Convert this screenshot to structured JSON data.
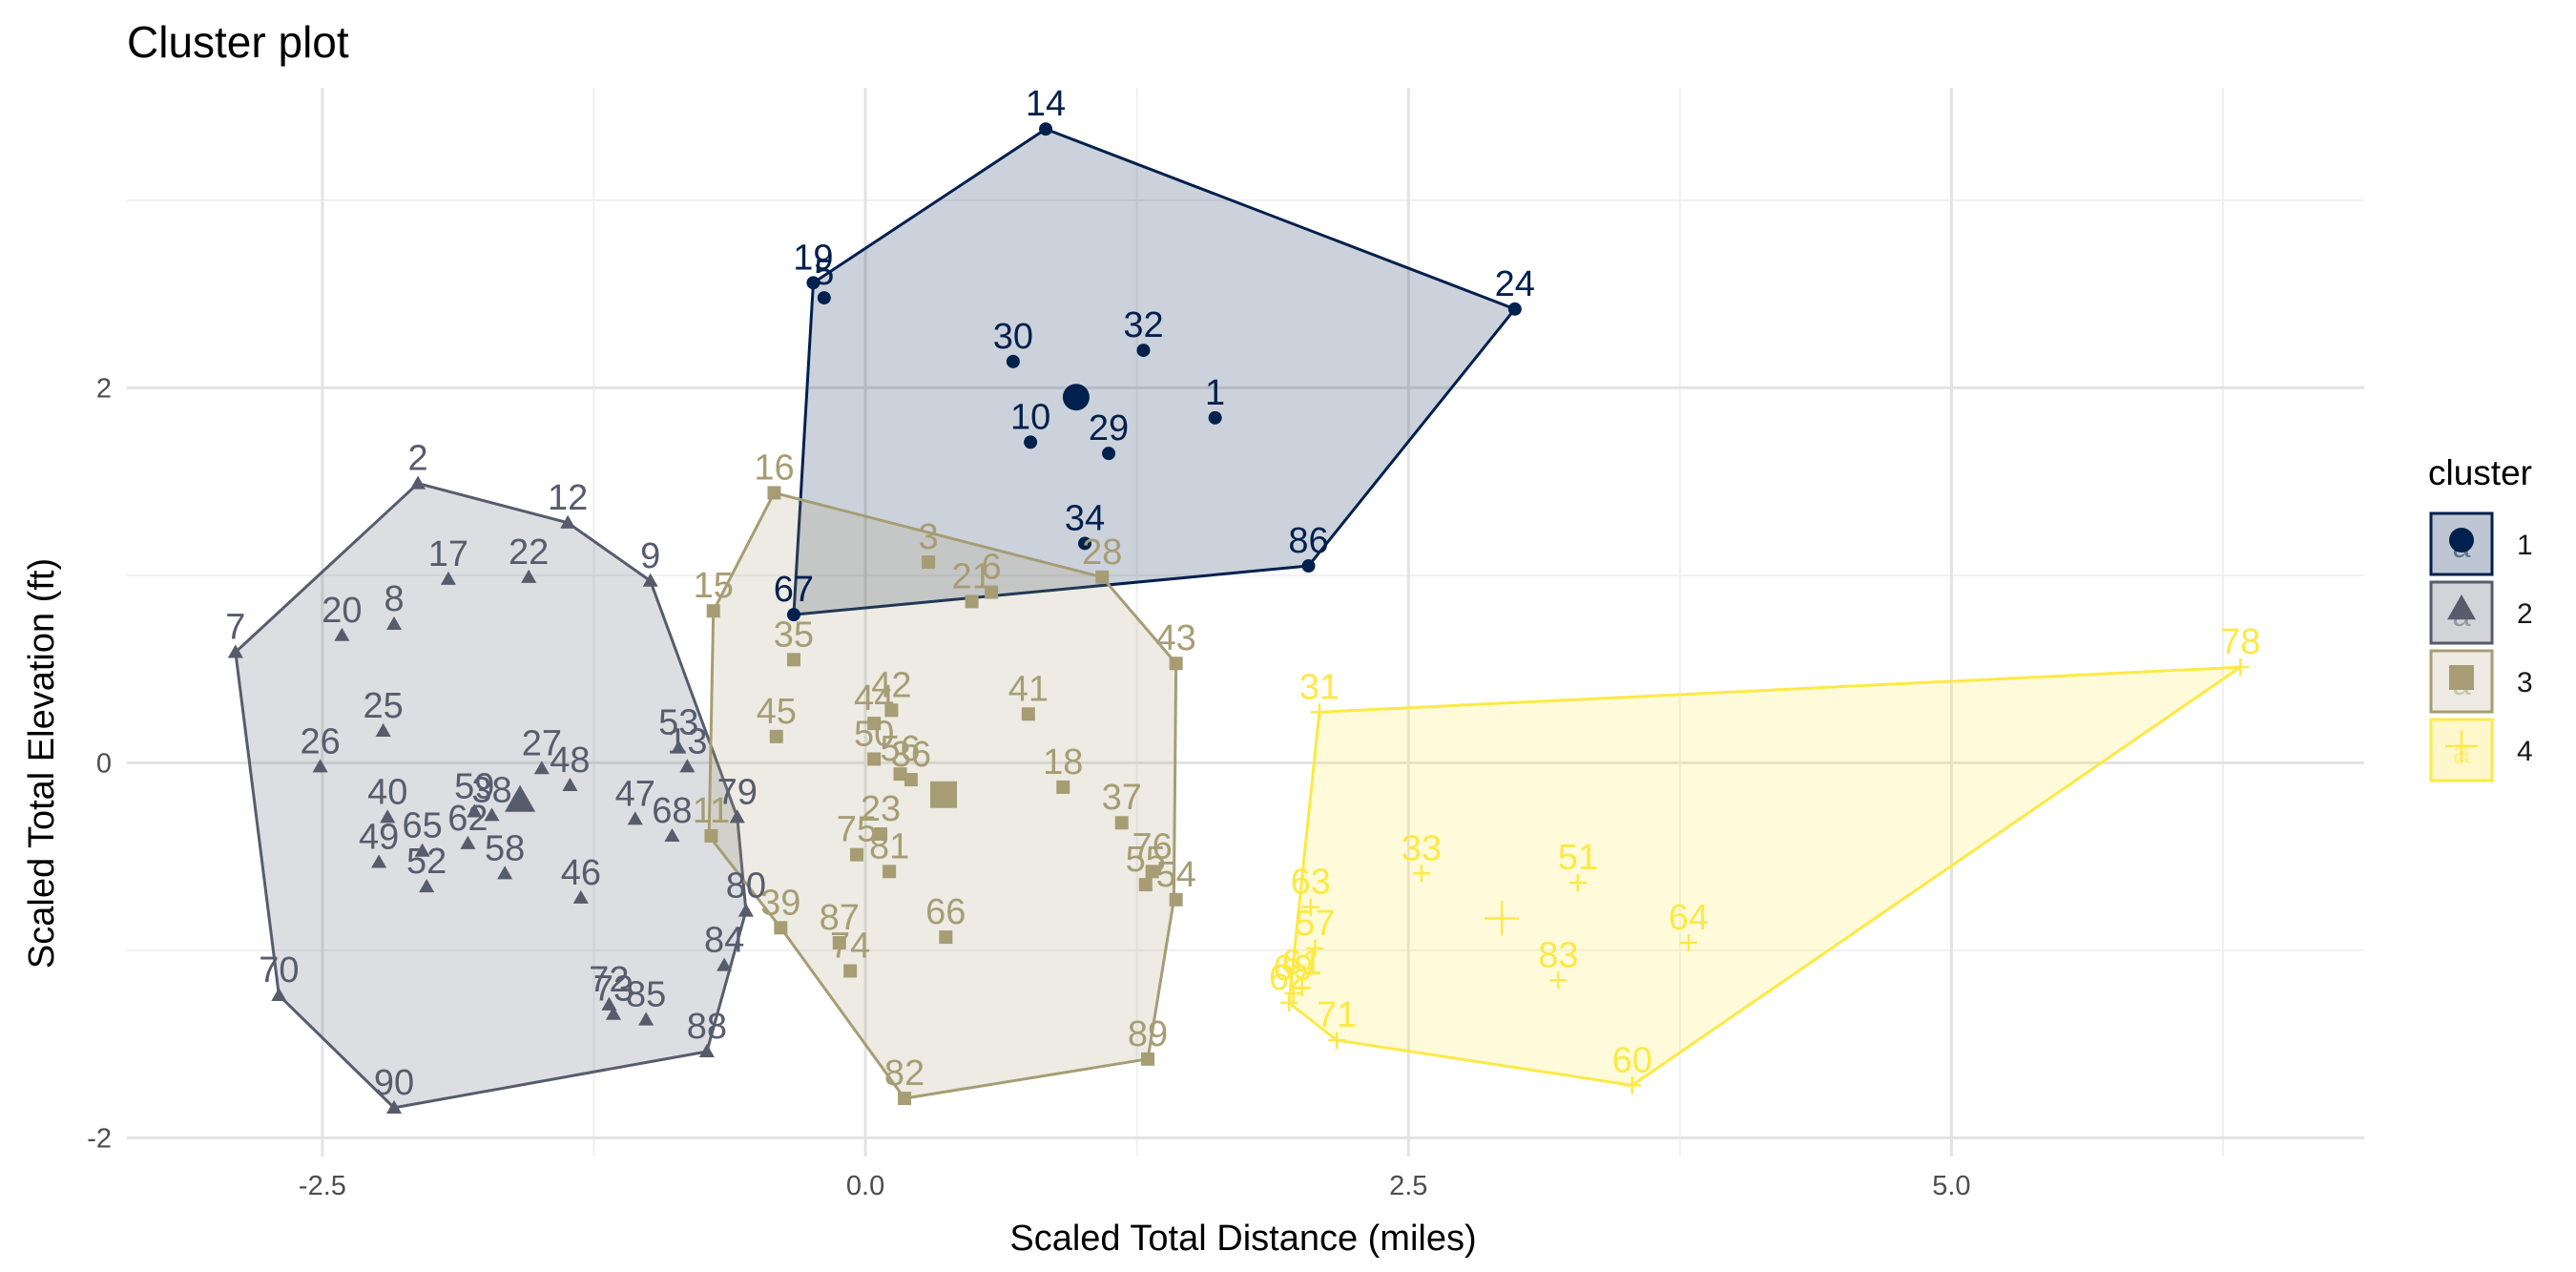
{
  "chart_data": {
    "type": "scatter",
    "title": "Cluster plot",
    "xlabel": "Scaled Total Distance (miles)",
    "ylabel": "Scaled Total Elevation (ft)",
    "xlim": [
      -3.4,
      6.9
    ],
    "ylim": [
      -2.1,
      3.6
    ],
    "x_ticks": [
      -2.5,
      0.0,
      2.5,
      5.0
    ],
    "x_tick_labels": [
      "-2.5",
      "0.0",
      "2.5",
      "5.0"
    ],
    "y_ticks": [
      -2,
      0,
      2
    ],
    "y_tick_labels": [
      "-2",
      "0",
      "2"
    ],
    "grid": true,
    "legend": {
      "title": "cluster",
      "position": "right",
      "entries": [
        "1",
        "2",
        "3",
        "4"
      ]
    },
    "series": [
      {
        "name": "1",
        "color": "#00204D",
        "fill": "#bfc6d3",
        "marker": "circle",
        "centroid": [
          0.97,
          1.95
        ],
        "hull": [
          [
            0.83,
            3.38
          ],
          [
            2.99,
            2.42
          ],
          [
            2.04,
            1.05
          ],
          [
            -0.33,
            0.79
          ],
          [
            -0.24,
            2.56
          ]
        ],
        "points": [
          {
            "id": "14",
            "x": 0.83,
            "y": 3.38
          },
          {
            "id": "19",
            "x": -0.24,
            "y": 2.56
          },
          {
            "id": "5",
            "x": -0.19,
            "y": 2.48
          },
          {
            "id": "24",
            "x": 2.99,
            "y": 2.42
          },
          {
            "id": "30",
            "x": 0.68,
            "y": 2.14
          },
          {
            "id": "32",
            "x": 1.28,
            "y": 2.2
          },
          {
            "id": "1",
            "x": 1.61,
            "y": 1.84
          },
          {
            "id": "10",
            "x": 0.76,
            "y": 1.71
          },
          {
            "id": "29",
            "x": 1.12,
            "y": 1.65
          },
          {
            "id": "34",
            "x": 1.01,
            "y": 1.17
          },
          {
            "id": "86",
            "x": 2.04,
            "y": 1.05
          },
          {
            "id": "67",
            "x": -0.33,
            "y": 0.79
          }
        ]
      },
      {
        "name": "2",
        "color": "#575C6D",
        "fill": "#d3d4d8",
        "marker": "triangle",
        "centroid": [
          -1.59,
          -0.2
        ],
        "hull": [
          [
            -2.06,
            1.49
          ],
          [
            -1.37,
            1.28
          ],
          [
            -0.99,
            0.97
          ],
          [
            -0.59,
            -0.29
          ],
          [
            -0.55,
            -0.79
          ],
          [
            -0.73,
            -1.54
          ],
          [
            -2.17,
            -1.84
          ],
          [
            -2.7,
            -1.24
          ],
          [
            -2.9,
            0.59
          ]
        ],
        "points": [
          {
            "id": "2",
            "x": -2.06,
            "y": 1.49
          },
          {
            "id": "12",
            "x": -1.37,
            "y": 1.28
          },
          {
            "id": "9",
            "x": -0.99,
            "y": 0.97
          },
          {
            "id": "17",
            "x": -1.92,
            "y": 0.98
          },
          {
            "id": "22",
            "x": -1.55,
            "y": 0.99
          },
          {
            "id": "7",
            "x": -2.9,
            "y": 0.59
          },
          {
            "id": "20",
            "x": -2.41,
            "y": 0.68
          },
          {
            "id": "8",
            "x": -2.17,
            "y": 0.74
          },
          {
            "id": "25",
            "x": -2.22,
            "y": 0.17
          },
          {
            "id": "26",
            "x": -2.51,
            "y": -0.02
          },
          {
            "id": "27",
            "x": -1.49,
            "y": -0.03
          },
          {
            "id": "48",
            "x": -1.36,
            "y": -0.12
          },
          {
            "id": "53",
            "x": -0.86,
            "y": 0.08
          },
          {
            "id": "13",
            "x": -0.82,
            "y": -0.02
          },
          {
            "id": "40",
            "x": -2.2,
            "y": -0.29
          },
          {
            "id": "59",
            "x": -1.8,
            "y": -0.26
          },
          {
            "id": "38",
            "x": -1.72,
            "y": -0.28
          },
          {
            "id": "47",
            "x": -1.06,
            "y": -0.3
          },
          {
            "id": "68",
            "x": -0.89,
            "y": -0.39
          },
          {
            "id": "49",
            "x": -2.24,
            "y": -0.53
          },
          {
            "id": "65",
            "x": -2.04,
            "y": -0.47
          },
          {
            "id": "62",
            "x": -1.83,
            "y": -0.43
          },
          {
            "id": "58",
            "x": -1.66,
            "y": -0.59
          },
          {
            "id": "52",
            "x": -2.02,
            "y": -0.66
          },
          {
            "id": "46",
            "x": -1.31,
            "y": -0.72
          },
          {
            "id": "79",
            "x": -0.59,
            "y": -0.29
          },
          {
            "id": "80",
            "x": -0.55,
            "y": -0.79
          },
          {
            "id": "84",
            "x": -0.65,
            "y": -1.08
          },
          {
            "id": "70",
            "x": -2.7,
            "y": -1.24
          },
          {
            "id": "72",
            "x": -1.18,
            "y": -1.29
          },
          {
            "id": "73",
            "x": -1.16,
            "y": -1.34
          },
          {
            "id": "85",
            "x": -1.01,
            "y": -1.37
          },
          {
            "id": "88",
            "x": -0.73,
            "y": -1.54
          },
          {
            "id": "90",
            "x": -2.17,
            "y": -1.84
          }
        ]
      },
      {
        "name": "3",
        "color": "#A69D75",
        "fill": "#edebe3",
        "marker": "square",
        "centroid": [
          0.36,
          -0.17
        ],
        "hull": [
          [
            -0.42,
            1.44
          ],
          [
            1.09,
            0.99
          ],
          [
            1.43,
            0.53
          ],
          [
            1.42,
            -0.73
          ],
          [
            1.3,
            -1.58
          ],
          [
            0.18,
            -1.79
          ],
          [
            -0.39,
            -0.88
          ],
          [
            -0.72,
            -0.39
          ],
          [
            -0.7,
            0.81
          ]
        ],
        "points": [
          {
            "id": "16",
            "x": -0.42,
            "y": 1.44
          },
          {
            "id": "3",
            "x": 0.29,
            "y": 1.07
          },
          {
            "id": "21",
            "x": 0.49,
            "y": 0.86
          },
          {
            "id": "6",
            "x": 0.58,
            "y": 0.91
          },
          {
            "id": "28",
            "x": 1.09,
            "y": 0.99
          },
          {
            "id": "15",
            "x": -0.7,
            "y": 0.81
          },
          {
            "id": "35",
            "x": -0.33,
            "y": 0.55
          },
          {
            "id": "43",
            "x": 1.43,
            "y": 0.53
          },
          {
            "id": "45",
            "x": -0.41,
            "y": 0.14
          },
          {
            "id": "44",
            "x": 0.04,
            "y": 0.21
          },
          {
            "id": "42",
            "x": 0.12,
            "y": 0.28
          },
          {
            "id": "41",
            "x": 0.75,
            "y": 0.26
          },
          {
            "id": "50",
            "x": 0.04,
            "y": 0.02
          },
          {
            "id": "56",
            "x": 0.16,
            "y": -0.06
          },
          {
            "id": "36",
            "x": 0.21,
            "y": -0.09
          },
          {
            "id": "18",
            "x": 0.91,
            "y": -0.13
          },
          {
            "id": "37",
            "x": 1.18,
            "y": -0.32
          },
          {
            "id": "11",
            "x": -0.71,
            "y": -0.39
          },
          {
            "id": "23",
            "x": 0.07,
            "y": -0.38
          },
          {
            "id": "75",
            "x": -0.04,
            "y": -0.49
          },
          {
            "id": "81",
            "x": 0.11,
            "y": -0.58
          },
          {
            "id": "76",
            "x": 1.32,
            "y": -0.58
          },
          {
            "id": "55",
            "x": 1.29,
            "y": -0.65
          },
          {
            "id": "54",
            "x": 1.43,
            "y": -0.73
          },
          {
            "id": "39",
            "x": -0.39,
            "y": -0.88
          },
          {
            "id": "87",
            "x": -0.12,
            "y": -0.96
          },
          {
            "id": "74",
            "x": -0.07,
            "y": -1.11
          },
          {
            "id": "66",
            "x": 0.37,
            "y": -0.93
          },
          {
            "id": "89",
            "x": 1.3,
            "y": -1.58
          },
          {
            "id": "82",
            "x": 0.18,
            "y": -1.79
          }
        ]
      },
      {
        "name": "4",
        "color": "#FDE945",
        "fill": "#fff8cc",
        "marker": "plus",
        "centroid": [
          2.93,
          -0.83
        ],
        "hull": [
          [
            6.33,
            0.51
          ],
          [
            3.53,
            -1.72
          ],
          [
            2.17,
            -1.48
          ],
          [
            1.95,
            -1.28
          ],
          [
            2.09,
            0.27
          ]
        ],
        "points": [
          {
            "id": "78",
            "x": 6.33,
            "y": 0.51
          },
          {
            "id": "31",
            "x": 2.09,
            "y": 0.27
          },
          {
            "id": "33",
            "x": 2.56,
            "y": -0.59
          },
          {
            "id": "51",
            "x": 3.28,
            "y": -0.64
          },
          {
            "id": "63",
            "x": 2.05,
            "y": -0.77
          },
          {
            "id": "64",
            "x": 3.79,
            "y": -0.96
          },
          {
            "id": "57",
            "x": 2.07,
            "y": -0.99
          },
          {
            "id": "83",
            "x": 3.19,
            "y": -1.16
          },
          {
            "id": "61",
            "x": 2.01,
            "y": -1.2
          },
          {
            "id": "69",
            "x": 1.97,
            "y": -1.23
          },
          {
            "id": "62",
            "x": 1.95,
            "y": -1.28
          },
          {
            "id": "71",
            "x": 2.17,
            "y": -1.48
          },
          {
            "id": "60",
            "x": 3.53,
            "y": -1.72
          }
        ]
      }
    ]
  }
}
